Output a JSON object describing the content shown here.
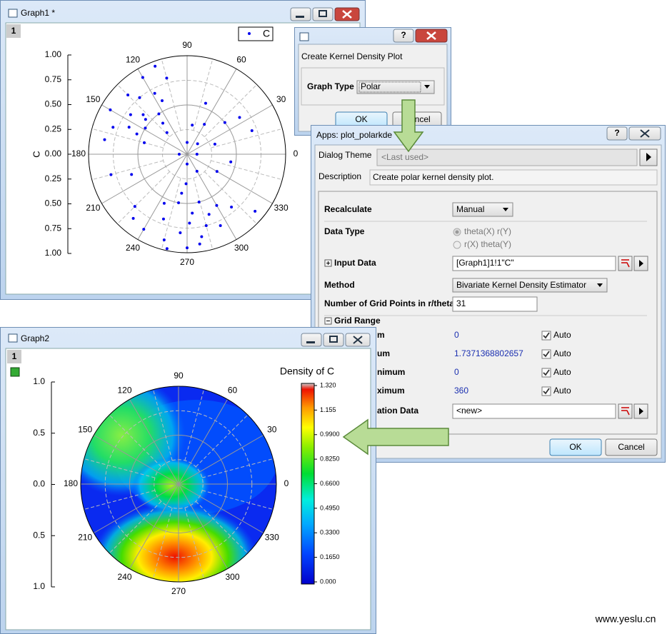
{
  "graph1": {
    "title": "Graph1 *",
    "layer": "1",
    "legend": "C",
    "axis_label": "C",
    "r_ticks": [
      "1.00",
      "0.75",
      "0.50",
      "0.25",
      "0.00",
      "0.25",
      "0.50",
      "0.75",
      "1.00"
    ],
    "angle_ticks": [
      0,
      30,
      60,
      90,
      120,
      150,
      180,
      210,
      240,
      270,
      300,
      330
    ],
    "points": {
      "theta": [
        105,
        115,
        120,
        125,
        130,
        135,
        140,
        145,
        150,
        155,
        160,
        165,
        110,
        128,
        138,
        148,
        118,
        133,
        158,
        170,
        0,
        45,
        90,
        180,
        270,
        300,
        20,
        60,
        250,
        255,
        260,
        265,
        270,
        275,
        280,
        285,
        290,
        245,
        262,
        268,
        272,
        278,
        284,
        258,
        295,
        240,
        300,
        310,
        225,
        230,
        40,
        70,
        350,
        330,
        20,
        200,
        195,
        80,
        35,
        320
      ],
      "r": [
        0.8,
        0.6,
        0.9,
        0.5,
        0.75,
        0.85,
        0.55,
        0.7,
        0.9,
        0.65,
        0.8,
        0.45,
        0.95,
        0.4,
        0.6,
        0.5,
        0.7,
        0.3,
        0.55,
        0.85,
        0.1,
        0.15,
        0.12,
        0.08,
        0.1,
        0.2,
        0.3,
        0.35,
        0.7,
        0.9,
        0.5,
        0.8,
        0.95,
        0.6,
        0.85,
        0.75,
        0.65,
        0.55,
        0.4,
        0.3,
        0.7,
        0.92,
        0.5,
        0.98,
        0.8,
        0.88,
        0.6,
        0.7,
        0.75,
        0.85,
        0.5,
        0.55,
        0.45,
        0.35,
        0.7,
        0.6,
        0.8,
        0.3,
        0.65,
        0.9
      ]
    }
  },
  "dialog1": {
    "title": "Create Kernel Density Plot",
    "graph_type_label": "Graph Type",
    "graph_type": "Polar",
    "ok": "OK",
    "cancel": "Cancel"
  },
  "dialog2": {
    "title": "Apps: plot_polarkde",
    "theme_label": "Dialog Theme",
    "theme": "<Last used>",
    "description_label": "Description",
    "description": "Create polar kernel density plot.",
    "recalculate_label": "Recalculate",
    "recalculate": "Manual",
    "data_type_label": "Data Type",
    "data_type_options": [
      "theta(X) r(Y)",
      "r(X) theta(Y)"
    ],
    "input_label": "Input Data",
    "input": "[Graph1]1!1\"C\"",
    "method_label": "Method",
    "method": "Bivariate Kernel Density Estimator",
    "grid_points_label": "Number of Grid Points in r/theta",
    "grid_points": "31",
    "grid_range_label": "Grid Range",
    "grid_rows": [
      {
        "label": "m",
        "value": "0",
        "auto": "Auto"
      },
      {
        "label": "um",
        "value": "1.7371368802657",
        "auto": "Auto"
      },
      {
        "label": "nimum",
        "value": "0",
        "auto": "Auto"
      },
      {
        "label": "ximum",
        "value": "360",
        "auto": "Auto"
      }
    ],
    "output_label": "ation Data",
    "output": "<new>",
    "ok": "OK",
    "cancel": "Cancel"
  },
  "graph2": {
    "title": "Graph2",
    "layer": "1",
    "colorbar_title": "Density of C",
    "colorbar_labels": [
      "1.320",
      "1.155",
      "0.9900",
      "0.8250",
      "0.6600",
      "0.4950",
      "0.3300",
      "0.1650",
      "0.000"
    ],
    "r_ticks": [
      "1.0",
      "0.5",
      "0.0",
      "0.5",
      "1.0"
    ],
    "angle_ticks": [
      0,
      30,
      60,
      90,
      120,
      150,
      180,
      210,
      240,
      270,
      300,
      330
    ]
  },
  "watermark": "www.yeslu.cn"
}
